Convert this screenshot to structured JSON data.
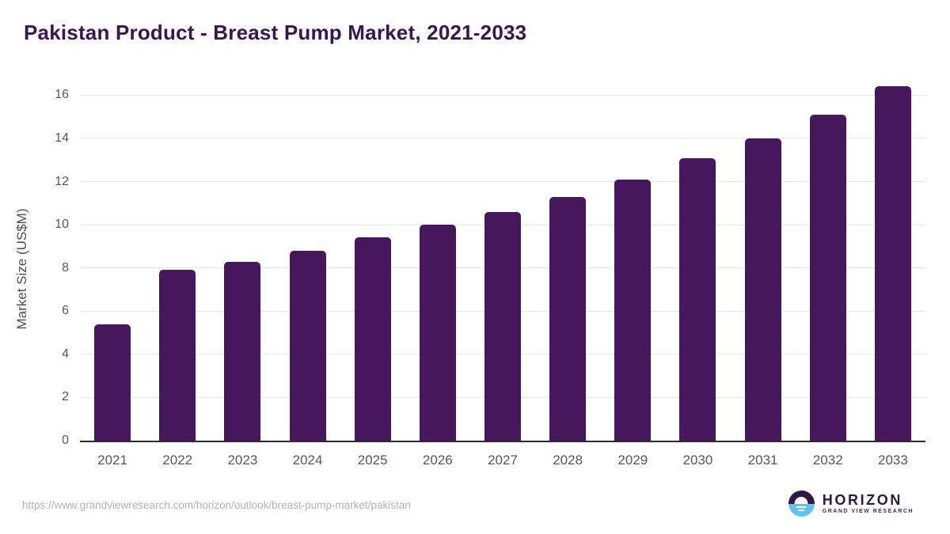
{
  "header": {
    "title": "Pakistan Product - Breast Pump Market, 2021-2033"
  },
  "footer": {
    "source_url": "https://www.grandviewresearch.com/horizon/outlook/breast-pump-market/pakistan",
    "logo": {
      "name": "HORIZON",
      "tagline": "GRAND VIEW RESEARCH"
    }
  },
  "colors": {
    "bar": "#46175c",
    "title_text": "#3a1453",
    "axis_line": "#2b2b2b",
    "gridline": "#e8e8e8",
    "tick_text": "#595959",
    "url_text": "#b3b3b3",
    "logo_purple": "#2e1745",
    "logo_blue": "#5ec4ef"
  },
  "chart_data": {
    "type": "bar",
    "title": "Pakistan Product - Breast Pump Market, 2021-2033",
    "categories": [
      "2021",
      "2022",
      "2023",
      "2024",
      "2025",
      "2026",
      "2027",
      "2028",
      "2029",
      "2030",
      "2031",
      "2032",
      "2033"
    ],
    "values": [
      5.4,
      7.9,
      8.3,
      8.8,
      9.4,
      10.0,
      10.6,
      11.3,
      12.1,
      13.1,
      14.0,
      15.1,
      16.4
    ],
    "xlabel": "",
    "ylabel": "Market Size (US$M)",
    "yticks": [
      0,
      2,
      4,
      6,
      8,
      10,
      12,
      14,
      16
    ],
    "ylim": [
      0,
      16.6
    ],
    "grid": "horizontal",
    "legend": "none"
  }
}
